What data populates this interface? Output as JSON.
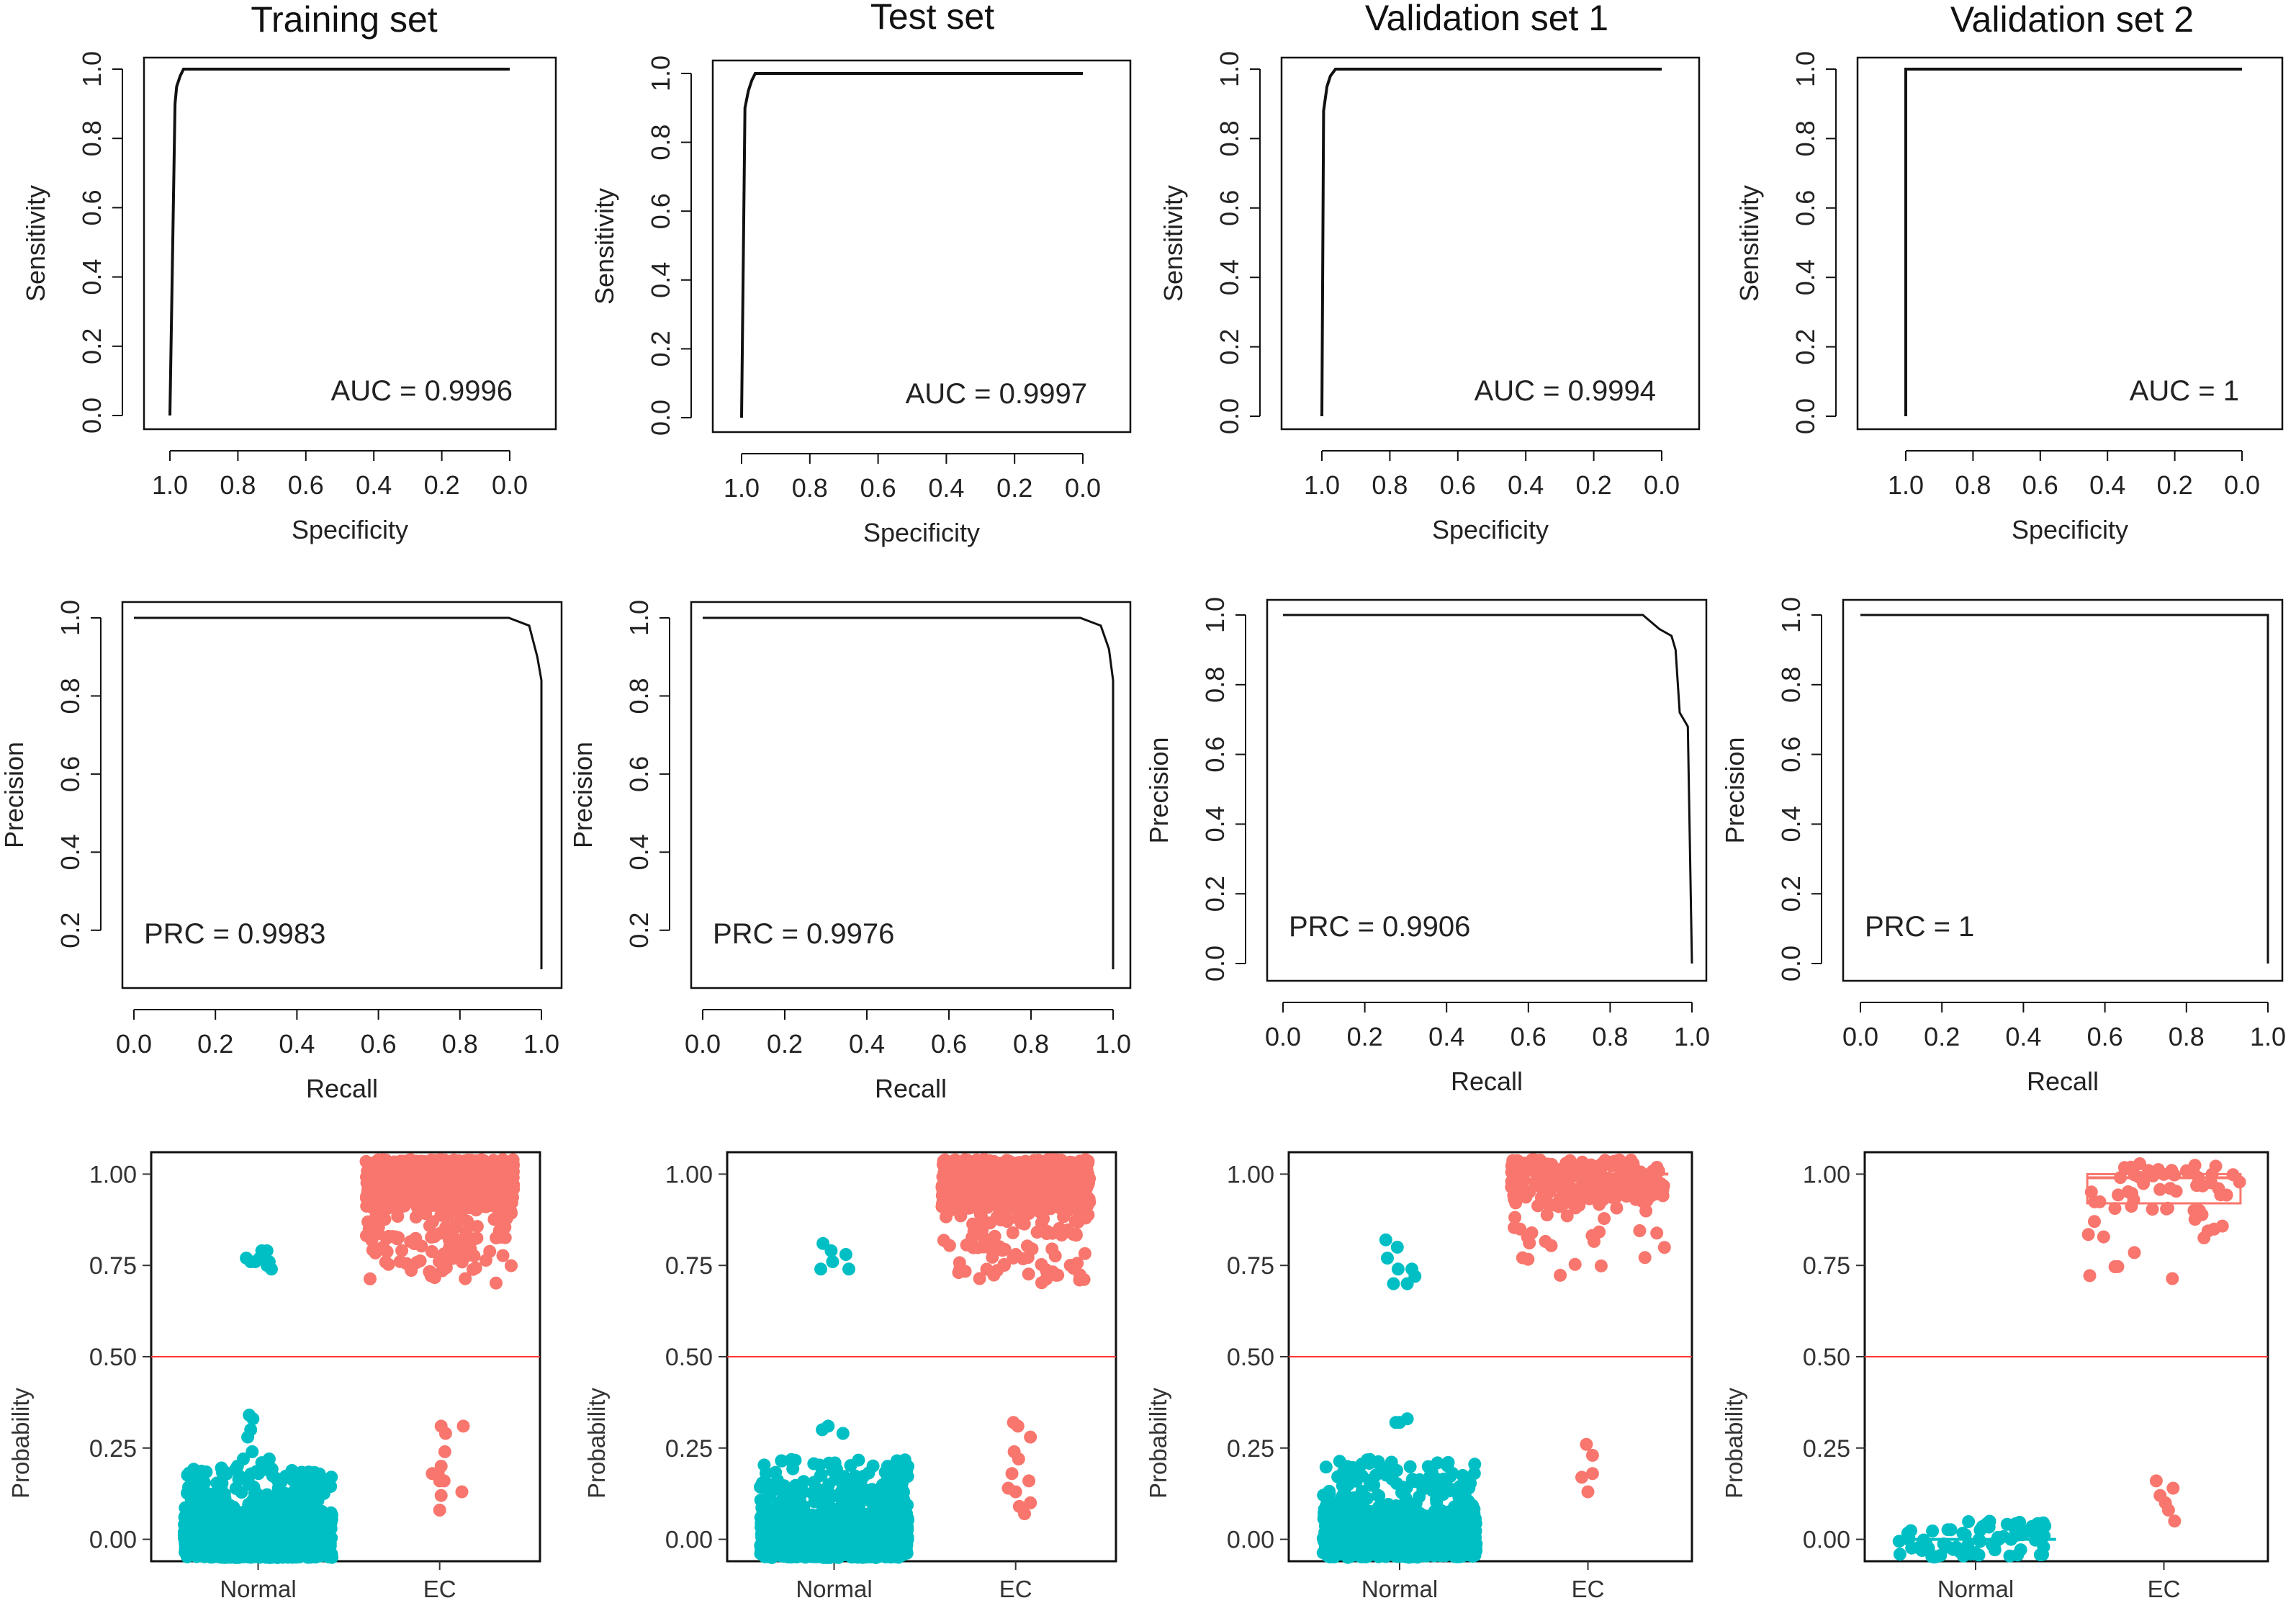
{
  "chart_data": [
    {
      "id": "roc-train",
      "type": "line",
      "kind": "roc",
      "column": 0,
      "title": "Training set",
      "xlabel": "Specificity",
      "ylabel": "Sensitivity",
      "xlim": [
        1.0,
        0.0
      ],
      "ylim": [
        0.0,
        1.0
      ],
      "xticks": [
        "1.0",
        "0.8",
        "0.6",
        "0.4",
        "0.2",
        "0.0"
      ],
      "yticks": [
        "0.0",
        "0.2",
        "0.4",
        "0.6",
        "0.8",
        "1.0"
      ],
      "x": [
        1.0,
        0.985,
        0.98,
        0.97,
        0.96,
        0.0
      ],
      "y": [
        0.0,
        0.9,
        0.95,
        0.98,
        1.0,
        1.0
      ],
      "annotation": "AUC = 0.9996"
    },
    {
      "id": "roc-test",
      "type": "line",
      "kind": "roc",
      "column": 1,
      "title": "Test set",
      "xlabel": "Specificity",
      "ylabel": "Sensitivity",
      "xlim": [
        1.0,
        0.0
      ],
      "ylim": [
        0.0,
        1.0
      ],
      "xticks": [
        "1.0",
        "0.8",
        "0.6",
        "0.4",
        "0.2",
        "0.0"
      ],
      "yticks": [
        "0.0",
        "0.2",
        "0.4",
        "0.6",
        "0.8",
        "1.0"
      ],
      "x": [
        1.0,
        0.99,
        0.98,
        0.97,
        0.96,
        0.0
      ],
      "y": [
        0.0,
        0.9,
        0.95,
        0.98,
        1.0,
        1.0
      ],
      "annotation": "AUC = 0.9997"
    },
    {
      "id": "roc-val1",
      "type": "line",
      "kind": "roc",
      "column": 2,
      "title": "Validation set 1",
      "xlabel": "Specificity",
      "ylabel": "Sensitivity",
      "xlim": [
        1.0,
        0.0
      ],
      "ylim": [
        0.0,
        1.0
      ],
      "xticks": [
        "1.0",
        "0.8",
        "0.6",
        "0.4",
        "0.2",
        "0.0"
      ],
      "yticks": [
        "0.0",
        "0.2",
        "0.4",
        "0.6",
        "0.8",
        "1.0"
      ],
      "x": [
        1.0,
        0.995,
        0.985,
        0.975,
        0.96,
        0.0
      ],
      "y": [
        0.0,
        0.88,
        0.95,
        0.98,
        1.0,
        1.0
      ],
      "annotation": "AUC = 0.9994"
    },
    {
      "id": "roc-val2",
      "type": "line",
      "kind": "roc",
      "column": 3,
      "title": "Validation set 2",
      "xlabel": "Specificity",
      "ylabel": "Sensitivity",
      "xlim": [
        1.0,
        0.0
      ],
      "ylim": [
        0.0,
        1.0
      ],
      "xticks": [
        "1.0",
        "0.8",
        "0.6",
        "0.4",
        "0.2",
        "0.0"
      ],
      "yticks": [
        "0.0",
        "0.2",
        "0.4",
        "0.6",
        "0.8",
        "1.0"
      ],
      "x": [
        1.0,
        1.0,
        0.0
      ],
      "y": [
        0.0,
        1.0,
        1.0
      ],
      "annotation": "AUC = 1"
    },
    {
      "id": "prc-train",
      "type": "line",
      "kind": "prc",
      "column": 0,
      "xlabel": "Recall",
      "ylabel": "Precision",
      "xlim": [
        0.0,
        1.0
      ],
      "ylim": [
        0.1,
        1.0
      ],
      "xticks": [
        "0.0",
        "0.2",
        "0.4",
        "0.6",
        "0.8",
        "1.0"
      ],
      "yticks": [
        "0.2",
        "0.4",
        "0.6",
        "0.8",
        "1.0"
      ],
      "x": [
        0.0,
        0.92,
        0.97,
        0.99,
        1.0,
        1.0
      ],
      "y": [
        1.0,
        1.0,
        0.98,
        0.9,
        0.84,
        0.1
      ],
      "annotation": "PRC = 0.9983"
    },
    {
      "id": "prc-test",
      "type": "line",
      "kind": "prc",
      "column": 1,
      "xlabel": "Recall",
      "ylabel": "Precision",
      "xlim": [
        0.0,
        1.0
      ],
      "ylim": [
        0.1,
        1.0
      ],
      "xticks": [
        "0.0",
        "0.2",
        "0.4",
        "0.6",
        "0.8",
        "1.0"
      ],
      "yticks": [
        "0.2",
        "0.4",
        "0.6",
        "0.8",
        "1.0"
      ],
      "x": [
        0.0,
        0.92,
        0.97,
        0.99,
        1.0,
        1.0
      ],
      "y": [
        1.0,
        1.0,
        0.98,
        0.92,
        0.84,
        0.1
      ],
      "annotation": "PRC = 0.9976"
    },
    {
      "id": "prc-val1",
      "type": "line",
      "kind": "prc",
      "column": 2,
      "xlabel": "Recall",
      "ylabel": "Precision",
      "xlim": [
        0.0,
        1.0
      ],
      "ylim": [
        0.0,
        1.0
      ],
      "xticks": [
        "0.0",
        "0.2",
        "0.4",
        "0.6",
        "0.8",
        "1.0"
      ],
      "yticks": [
        "0.0",
        "0.2",
        "0.4",
        "0.6",
        "0.8",
        "1.0"
      ],
      "x": [
        0.0,
        0.88,
        0.92,
        0.95,
        0.96,
        0.97,
        0.99,
        1.0
      ],
      "y": [
        1.0,
        1.0,
        0.96,
        0.94,
        0.9,
        0.72,
        0.68,
        0.0
      ],
      "annotation": "PRC = 0.9906"
    },
    {
      "id": "prc-val2",
      "type": "line",
      "kind": "prc",
      "column": 3,
      "xlabel": "Recall",
      "ylabel": "Precision",
      "xlim": [
        0.0,
        1.0
      ],
      "ylim": [
        0.0,
        1.0
      ],
      "xticks": [
        "0.0",
        "0.2",
        "0.4",
        "0.6",
        "0.8",
        "1.0"
      ],
      "yticks": [
        "0.0",
        "0.2",
        "0.4",
        "0.6",
        "0.8",
        "1.0"
      ],
      "x": [
        0.0,
        1.0,
        1.0
      ],
      "y": [
        1.0,
        1.0,
        0.0
      ],
      "annotation": "PRC = 1"
    },
    {
      "id": "prob-train",
      "type": "scatter",
      "kind": "prob",
      "column": 0,
      "ylabel": "Probability",
      "ylim": [
        -0.06,
        1.06
      ],
      "categories": [
        "Normal",
        "EC"
      ],
      "threshold": 0.5,
      "yticks": [
        "0.00",
        "0.25",
        "0.50",
        "0.75",
        "1.00"
      ],
      "colors": {
        "Normal": "#00BFC4",
        "EC": "#F8766D",
        "threshold": "#ff3333"
      },
      "groups": [
        {
          "name": "Normal",
          "dense": {
            "lo": -0.05,
            "hi": 0.07,
            "n": 1400
          },
          "sparse": {
            "lo": 0.07,
            "hi": 0.2,
            "n": 200
          },
          "points": [
            [
              0.86,
              0.28
            ],
            [
              0.9,
              0.3
            ],
            [
              0.93,
              0.33
            ],
            [
              0.88,
              0.34
            ],
            [
              0.8,
              0.22
            ],
            [
              0.92,
              0.24
            ],
            [
              0.72,
              0.2
            ],
            [
              1.05,
              0.21
            ],
            [
              1.15,
              0.22
            ],
            [
              0.84,
              0.77
            ],
            [
              0.9,
              0.76
            ],
            [
              0.96,
              0.76
            ],
            [
              1.02,
              0.77
            ],
            [
              1.05,
              0.79
            ],
            [
              1.12,
              0.79
            ],
            [
              1.15,
              0.76
            ],
            [
              1.18,
              0.74
            ],
            [
              1.12,
              0.75
            ]
          ]
        },
        {
          "name": "EC",
          "dense": {
            "lo": 0.91,
            "hi": 1.04,
            "n": 900
          },
          "sparse": {
            "lo": 0.7,
            "hi": 0.91,
            "n": 120
          },
          "points": [
            [
              0.9,
              0.18
            ],
            [
              1.02,
              0.31
            ],
            [
              1.08,
              0.29
            ],
            [
              1.07,
              0.24
            ],
            [
              1.02,
              0.2
            ],
            [
              0.98,
              0.18
            ],
            [
              1.02,
              0.12
            ],
            [
              1.0,
              0.08
            ],
            [
              1.06,
              0.16
            ],
            [
              1.32,
              0.31
            ],
            [
              1.3,
              0.13
            ],
            [
              1.0,
              0.16
            ]
          ]
        }
      ]
    },
    {
      "id": "prob-test",
      "type": "scatter",
      "kind": "prob",
      "column": 1,
      "ylabel": "Probability",
      "ylim": [
        -0.06,
        1.06
      ],
      "categories": [
        "Normal",
        "EC"
      ],
      "threshold": 0.5,
      "yticks": [
        "0.00",
        "0.25",
        "0.50",
        "0.75",
        "1.00"
      ],
      "colors": {
        "Normal": "#00BFC4",
        "EC": "#F8766D",
        "threshold": "#ff3333"
      },
      "groups": [
        {
          "name": "Normal",
          "dense": {
            "lo": -0.05,
            "hi": 0.07,
            "n": 1300
          },
          "sparse": {
            "lo": 0.07,
            "hi": 0.22,
            "n": 200
          },
          "points": [
            [
              0.84,
              0.3
            ],
            [
              0.92,
              0.31
            ],
            [
              1.12,
              0.29
            ],
            [
              0.85,
              0.81
            ],
            [
              0.82,
              0.74
            ],
            [
              0.96,
              0.79
            ],
            [
              0.98,
              0.76
            ],
            [
              1.16,
              0.78
            ],
            [
              1.2,
              0.74
            ]
          ]
        },
        {
          "name": "EC",
          "dense": {
            "lo": 0.91,
            "hi": 1.04,
            "n": 850
          },
          "sparse": {
            "lo": 0.7,
            "hi": 0.91,
            "n": 110
          },
          "points": [
            [
              0.97,
              0.32
            ],
            [
              1.03,
              0.31
            ],
            [
              1.2,
              0.28
            ],
            [
              0.98,
              0.24
            ],
            [
              1.04,
              0.22
            ],
            [
              0.9,
              0.14
            ],
            [
              1.0,
              0.13
            ],
            [
              1.05,
              0.09
            ],
            [
              1.12,
              0.07
            ],
            [
              1.2,
              0.1
            ],
            [
              1.18,
              0.16
            ],
            [
              0.95,
              0.18
            ]
          ]
        }
      ]
    },
    {
      "id": "prob-val1",
      "type": "scatter",
      "kind": "prob",
      "column": 2,
      "ylabel": "Probability",
      "ylim": [
        -0.06,
        1.06
      ],
      "categories": [
        "Normal",
        "EC"
      ],
      "threshold": 0.5,
      "yticks": [
        "0.00",
        "0.25",
        "0.50",
        "0.75",
        "1.00"
      ],
      "colors": {
        "Normal": "#00BFC4",
        "EC": "#F8766D",
        "threshold": "#ff3333"
      },
      "groups": [
        {
          "name": "Normal",
          "dense": {
            "lo": -0.05,
            "hi": 0.07,
            "n": 1100
          },
          "sparse": {
            "lo": 0.07,
            "hi": 0.22,
            "n": 160
          },
          "points": [
            [
              0.95,
              0.32
            ],
            [
              1.0,
              0.32
            ],
            [
              1.1,
              0.33
            ],
            [
              0.82,
              0.82
            ],
            [
              0.84,
              0.77
            ],
            [
              0.97,
              0.8
            ],
            [
              0.98,
              0.74
            ],
            [
              0.92,
              0.7
            ],
            [
              1.1,
              0.7
            ],
            [
              1.16,
              0.74
            ],
            [
              1.2,
              0.72
            ]
          ]
        },
        {
          "name": "EC",
          "dense": {
            "lo": 0.93,
            "hi": 1.04,
            "n": 220
          },
          "sparse": {
            "lo": 0.72,
            "hi": 0.93,
            "n": 40
          },
          "points": [
            [
              0.98,
              0.26
            ],
            [
              0.92,
              0.17
            ],
            [
              1.0,
              0.13
            ],
            [
              1.06,
              0.18
            ],
            [
              1.06,
              0.23
            ]
          ]
        }
      ]
    },
    {
      "id": "prob-val2",
      "type": "scatter",
      "kind": "prob",
      "column": 3,
      "ylabel": "Probability",
      "ylim": [
        -0.06,
        1.06
      ],
      "categories": [
        "Normal",
        "EC"
      ],
      "threshold": 0.5,
      "yticks": [
        "0.00",
        "0.25",
        "0.50",
        "0.75",
        "1.00"
      ],
      "colors": {
        "Normal": "#00BFC4",
        "EC": "#F8766D",
        "threshold": "#ff3333"
      },
      "box": {
        "group": "EC",
        "q1": 0.92,
        "median": 0.99,
        "q3": 1.0
      },
      "groups": [
        {
          "name": "Normal",
          "dense": {
            "lo": -0.05,
            "hi": 0.05,
            "n": 70
          },
          "sparse": {
            "lo": 0.05,
            "hi": 0.05,
            "n": 0
          },
          "points": []
        },
        {
          "name": "EC",
          "dense": {
            "lo": 0.9,
            "hi": 1.03,
            "n": 45
          },
          "sparse": {
            "lo": 0.7,
            "hi": 0.9,
            "n": 14
          },
          "points": [
            [
              0.9,
              0.16
            ],
            [
              0.95,
              0.12
            ],
            [
              1.02,
              0.1
            ],
            [
              1.06,
              0.08
            ],
            [
              1.12,
              0.14
            ],
            [
              1.14,
              0.05
            ]
          ]
        }
      ]
    }
  ]
}
